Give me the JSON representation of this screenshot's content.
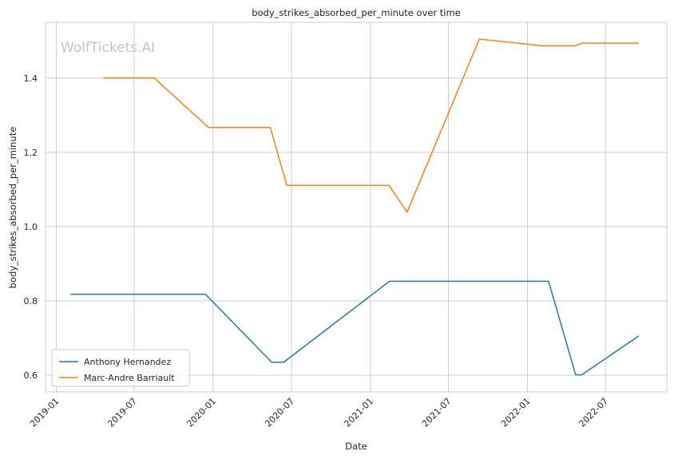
{
  "watermark": "WolfTickets.AI",
  "chart_data": {
    "type": "line",
    "title": "body_strikes_absorbed_per_minute over time",
    "xlabel": "Date",
    "ylabel": "body_strikes_absorbed_per_minute",
    "x_type": "date",
    "xlim": [
      "2018-12-07",
      "2022-11-21"
    ],
    "ylim": [
      0.555,
      1.55
    ],
    "x_ticks": [
      "2019-01",
      "2019-07",
      "2020-01",
      "2020-07",
      "2021-01",
      "2021-07",
      "2022-01",
      "2022-07"
    ],
    "y_ticks": [
      0.6,
      0.8,
      1.0,
      1.2,
      1.4
    ],
    "grid": true,
    "legend_position": "lower-left",
    "series": [
      {
        "name": "Anthony Hernandez",
        "color": "#1f77b4",
        "points": [
          [
            "2019-02-03",
            0.818
          ],
          [
            "2019-12-14",
            0.818
          ],
          [
            "2020-05-16",
            0.635
          ],
          [
            "2020-06-13",
            0.635
          ],
          [
            "2021-02-14",
            0.853
          ],
          [
            "2022-02-19",
            0.853
          ],
          [
            "2022-04-23",
            0.601
          ],
          [
            "2022-05-07",
            0.601
          ],
          [
            "2022-09-17",
            0.706
          ]
        ]
      },
      {
        "name": "Marc-Andre Barriault",
        "color": "#ff7f0e",
        "points": [
          [
            "2019-04-20",
            1.4
          ],
          [
            "2019-08-17",
            1.4
          ],
          [
            "2019-12-21",
            1.267
          ],
          [
            "2020-05-13",
            1.267
          ],
          [
            "2020-06-20",
            1.111
          ],
          [
            "2021-02-13",
            1.111
          ],
          [
            "2021-03-27",
            1.039
          ],
          [
            "2021-09-11",
            1.505
          ],
          [
            "2022-02-05",
            1.487
          ],
          [
            "2022-04-23",
            1.487
          ],
          [
            "2022-05-07",
            1.494
          ],
          [
            "2022-09-17",
            1.494
          ]
        ]
      }
    ]
  }
}
